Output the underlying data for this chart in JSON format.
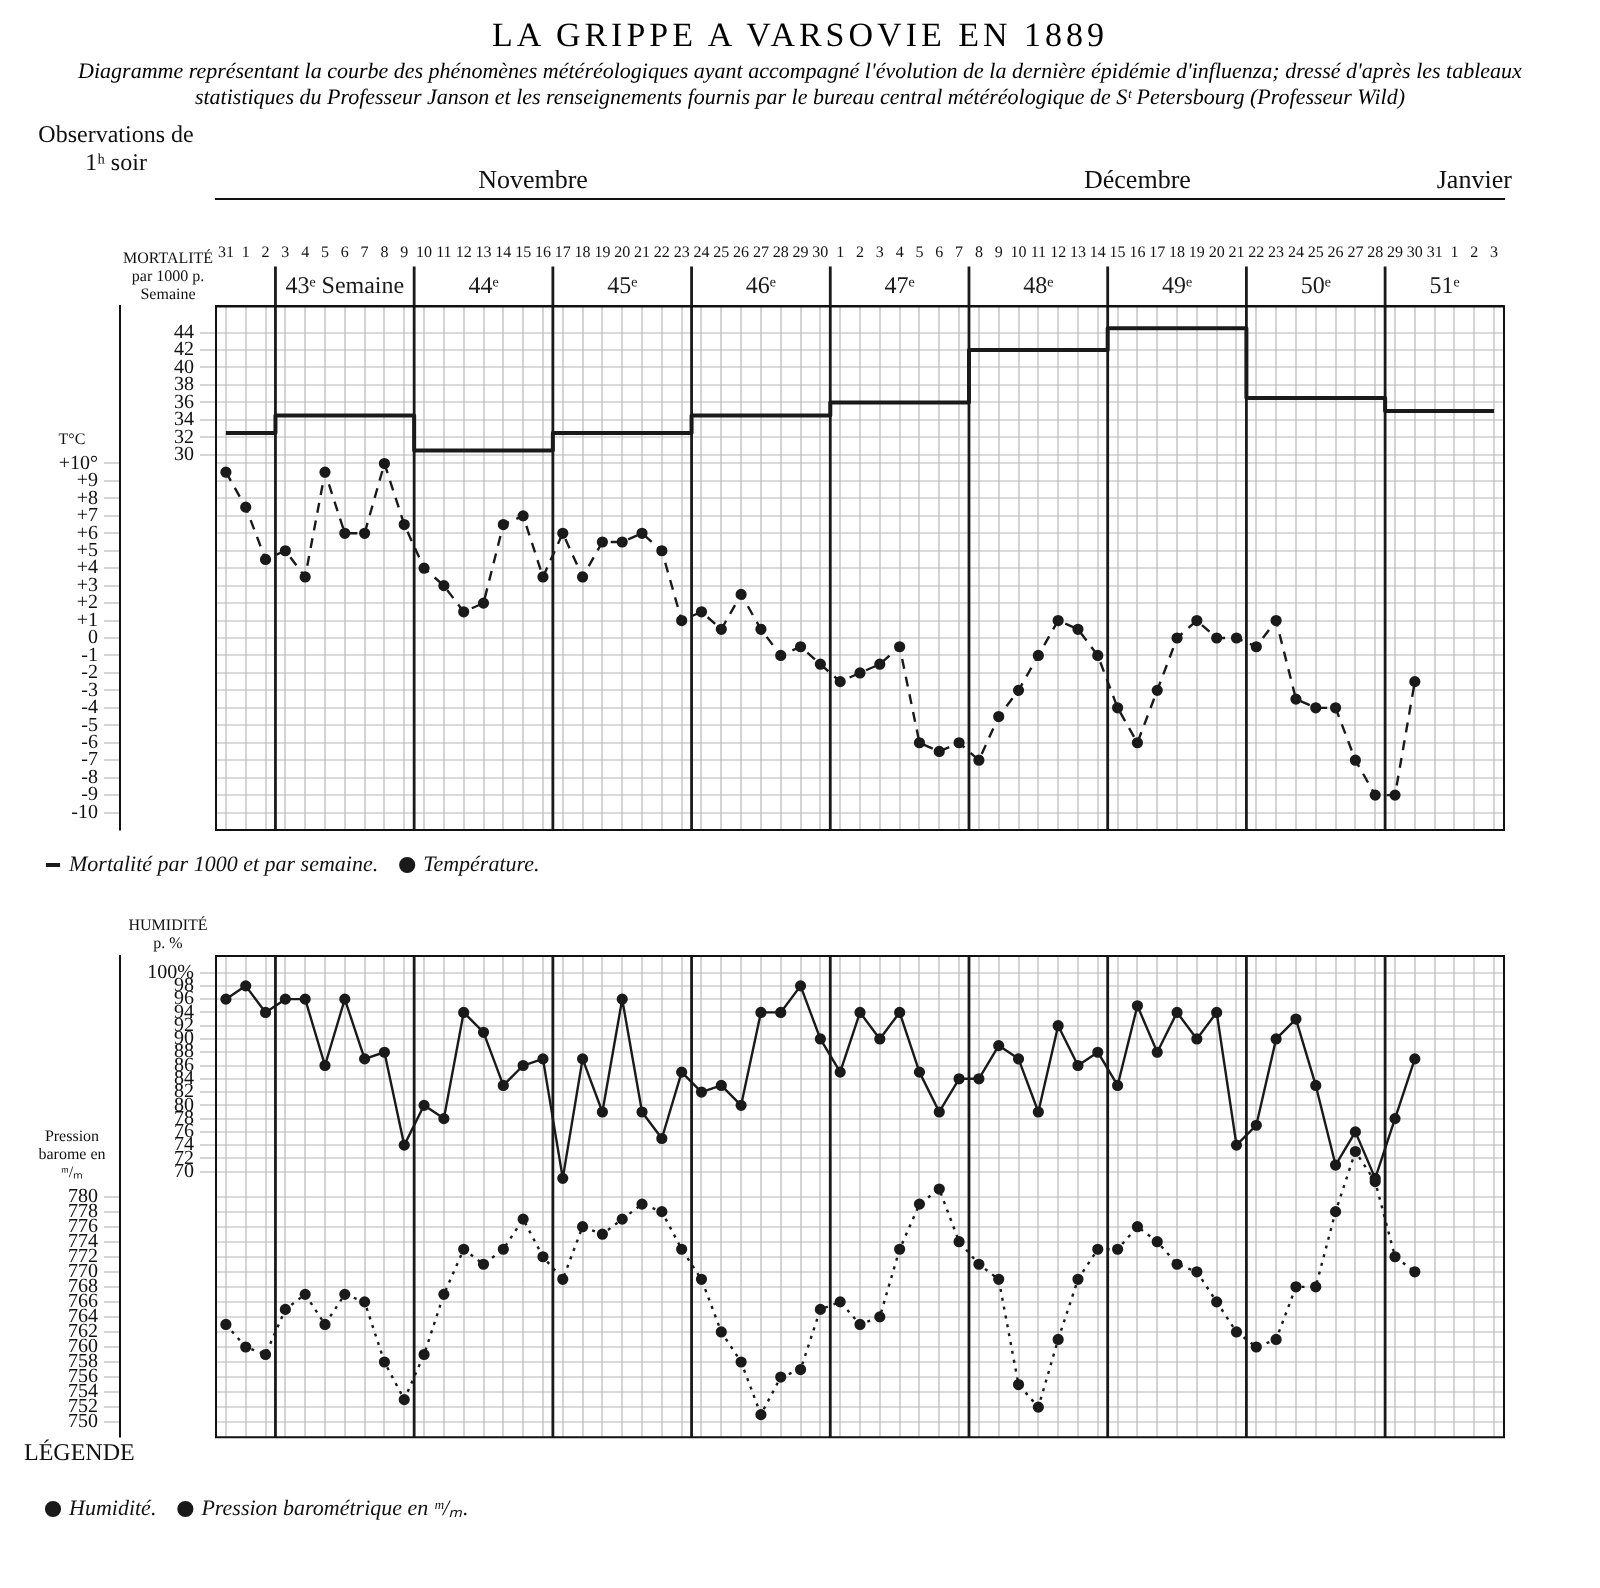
{
  "chart_data": [
    {
      "type": "line",
      "title": "LA GRIPPE A VARSOVIE EN 1889",
      "subtitle": "Diagramme représentant la courbe des phénomènes météréologiques ayant accompagné l'évolution de la dernière épidémie d'influenza; dressé d'après les tableaux statistiques du Professeur Janson et les renseignements fournis par le bureau central météréologique de Sᵗ Petersbourg (Professeur Wild)",
      "x": [
        "1889-10-31",
        "1889-11-01",
        "1889-11-02",
        "1889-11-03",
        "1889-11-04",
        "1889-11-05",
        "1889-11-06",
        "1889-11-07",
        "1889-11-08",
        "1889-11-09",
        "1889-11-10",
        "1889-11-11",
        "1889-11-12",
        "1889-11-13",
        "1889-11-14",
        "1889-11-15",
        "1889-11-16",
        "1889-11-17",
        "1889-11-18",
        "1889-11-19",
        "1889-11-20",
        "1889-11-21",
        "1889-11-22",
        "1889-11-23",
        "1889-11-24",
        "1889-11-25",
        "1889-11-26",
        "1889-11-27",
        "1889-11-28",
        "1889-11-29",
        "1889-11-30",
        "1889-12-01",
        "1889-12-02",
        "1889-12-03",
        "1889-12-04",
        "1889-12-05",
        "1889-12-06",
        "1889-12-07",
        "1889-12-08",
        "1889-12-09",
        "1889-12-10",
        "1889-12-11",
        "1889-12-12",
        "1889-12-13",
        "1889-12-14",
        "1889-12-15",
        "1889-12-16",
        "1889-12-17",
        "1889-12-18",
        "1889-12-19",
        "1889-12-20",
        "1889-12-21",
        "1889-12-22",
        "1889-12-23",
        "1889-12-24",
        "1889-12-25",
        "1889-12-26",
        "1889-12-27",
        "1889-12-28",
        "1889-12-29",
        "1889-12-30",
        "1889-12-31",
        "1890-01-01",
        "1890-01-02",
        "1890-01-03"
      ],
      "xlim": [
        "1889-10-30T12:00",
        "1890-01-03T12:00"
      ],
      "xticks": [
        {
          "value": "1889-10-31",
          "label": "31"
        },
        {
          "value": "1889-11-01",
          "label": "1"
        },
        {
          "value": "1889-11-02",
          "label": "2"
        },
        {
          "value": "1889-11-03",
          "label": "3"
        },
        {
          "value": "1889-11-04",
          "label": "4"
        },
        {
          "value": "1889-11-05",
          "label": "5"
        },
        {
          "value": "1889-11-06",
          "label": "6"
        },
        {
          "value": "1889-11-07",
          "label": "7"
        },
        {
          "value": "1889-11-08",
          "label": "8"
        },
        {
          "value": "1889-11-09",
          "label": "9"
        },
        {
          "value": "1889-11-10",
          "label": "10"
        },
        {
          "value": "1889-11-11",
          "label": "11"
        },
        {
          "value": "1889-11-12",
          "label": "12"
        },
        {
          "value": "1889-11-13",
          "label": "13"
        },
        {
          "value": "1889-11-14",
          "label": "14"
        },
        {
          "value": "1889-11-15",
          "label": "15"
        },
        {
          "value": "1889-11-16",
          "label": "16"
        },
        {
          "value": "1889-11-17",
          "label": "17"
        },
        {
          "value": "1889-11-18",
          "label": "18"
        },
        {
          "value": "1889-11-19",
          "label": "19"
        },
        {
          "value": "1889-11-20",
          "label": "20"
        },
        {
          "value": "1889-11-21",
          "label": "21"
        },
        {
          "value": "1889-11-22",
          "label": "22"
        },
        {
          "value": "1889-11-23",
          "label": "23"
        },
        {
          "value": "1889-11-24",
          "label": "24"
        },
        {
          "value": "1889-11-25",
          "label": "25"
        },
        {
          "value": "1889-11-26",
          "label": "26"
        },
        {
          "value": "1889-11-27",
          "label": "27"
        },
        {
          "value": "1889-11-28",
          "label": "28"
        },
        {
          "value": "1889-11-29",
          "label": "29"
        },
        {
          "value": "1889-11-30",
          "label": "30"
        },
        {
          "value": "1889-12-01",
          "label": "1"
        },
        {
          "value": "1889-12-02",
          "label": "2"
        },
        {
          "value": "1889-12-03",
          "label": "3"
        },
        {
          "value": "1889-12-04",
          "label": "4"
        },
        {
          "value": "1889-12-05",
          "label": "5"
        },
        {
          "value": "1889-12-06",
          "label": "6"
        },
        {
          "value": "1889-12-07",
          "label": "7"
        },
        {
          "value": "1889-12-08",
          "label": "8"
        },
        {
          "value": "1889-12-09",
          "label": "9"
        },
        {
          "value": "1889-12-10",
          "label": "10"
        },
        {
          "value": "1889-12-11",
          "label": "11"
        },
        {
          "value": "1889-12-12",
          "label": "12"
        },
        {
          "value": "1889-12-13",
          "label": "13"
        },
        {
          "value": "1889-12-14",
          "label": "14"
        },
        {
          "value": "1889-12-15",
          "label": "15"
        },
        {
          "value": "1889-12-16",
          "label": "16"
        },
        {
          "value": "1889-12-17",
          "label": "17"
        },
        {
          "value": "1889-12-18",
          "label": "18"
        },
        {
          "value": "1889-12-19",
          "label": "19"
        },
        {
          "value": "1889-12-20",
          "label": "20"
        },
        {
          "value": "1889-12-21",
          "label": "21"
        },
        {
          "value": "1889-12-22",
          "label": "22"
        },
        {
          "value": "1889-12-23",
          "label": "23"
        },
        {
          "value": "1889-12-24",
          "label": "24"
        },
        {
          "value": "1889-12-25",
          "label": "25"
        },
        {
          "value": "1889-12-26",
          "label": "26"
        },
        {
          "value": "1889-12-27",
          "label": "27"
        },
        {
          "value": "1889-12-28",
          "label": "28"
        },
        {
          "value": "1889-12-29",
          "label": "29"
        },
        {
          "value": "1889-12-30",
          "label": "30"
        },
        {
          "value": "1889-12-31",
          "label": "31"
        },
        {
          "value": "1890-01-01",
          "label": "1"
        },
        {
          "value": "1890-01-02",
          "label": "2"
        },
        {
          "value": "1890-01-03",
          "label": "3"
        }
      ],
      "x2lim": [
        "1889-10-30T12:00",
        "1890-01-03T12:00"
      ],
      "x2ticks": [
        {
          "value": "1889-11-15T12:00",
          "label": "Novembre"
        },
        {
          "value": "1889-12-16",
          "label": "Décembre"
        },
        {
          "value": "1890-01-02",
          "label": "Janvier"
        }
      ],
      "ylabel": "MORTALITÉ par 1000 p. Semaine",
      "ylim": [
        -13,
        47
      ],
      "yticks": [
        30,
        32,
        34,
        36,
        38,
        40,
        42,
        44
      ],
      "y2label": "T°C",
      "y2lim": [
        -11,
        19
      ],
      "y2ticks": [
        {
          "value": 10,
          "label": "+10°"
        },
        {
          "value": 9,
          "label": "+9"
        },
        {
          "value": 8,
          "label": "+8"
        },
        {
          "value": 7,
          "label": "+7"
        },
        {
          "value": 6,
          "label": "+6"
        },
        {
          "value": 5,
          "label": "+5"
        },
        {
          "value": 4,
          "label": "+4"
        },
        {
          "value": 3,
          "label": "+3"
        },
        {
          "value": 2,
          "label": "+2"
        },
        {
          "value": 1,
          "label": "+1"
        },
        0,
        -1,
        -2,
        -3,
        -4,
        -5,
        -6,
        -7,
        -8,
        -9,
        -10
      ],
      "series": [
        {
          "name": "Mortalité par 1000 et par semaine.",
          "type": "step",
          "color": "#1a1a1a",
          "marker": "none",
          "line_style": "solid",
          "values": [
            32.5,
            32.5,
            32.5,
            34.5,
            34.5,
            34.5,
            34.5,
            34.5,
            34.5,
            34.5,
            30.5,
            30.5,
            30.5,
            30.5,
            30.5,
            30.5,
            30.5,
            32.5,
            32.5,
            32.5,
            32.5,
            32.5,
            32.5,
            32.5,
            34.5,
            34.5,
            34.5,
            34.5,
            34.5,
            34.5,
            34.5,
            36,
            36,
            36,
            36,
            36,
            36,
            36,
            42,
            42,
            42,
            42,
            42,
            42,
            42,
            44.5,
            44.5,
            44.5,
            44.5,
            44.5,
            44.5,
            44.5,
            36.5,
            36.5,
            36.5,
            36.5,
            36.5,
            36.5,
            36.5,
            35,
            35,
            35,
            35,
            35,
            35
          ]
        },
        {
          "name": "Température.",
          "axis": "y2",
          "color": "#1a1a1a",
          "marker": "circle",
          "line_style": "dashed",
          "values": [
            9.5,
            7.5,
            4.5,
            5,
            3.5,
            9.5,
            6,
            6,
            10,
            6.5,
            4,
            3,
            1.5,
            2,
            6.5,
            7,
            3.5,
            6,
            3.5,
            5.5,
            5.5,
            6,
            5,
            1,
            1.5,
            0.5,
            2.5,
            0.5,
            -1,
            -0.5,
            -1.5,
            -2.5,
            -2,
            -1.5,
            -0.5,
            -6,
            -6.5,
            -6,
            -7,
            -4.5,
            -3,
            -1,
            1,
            0.5,
            -1,
            -4,
            -6,
            -3,
            0,
            1,
            0,
            0,
            -0.5,
            1,
            -3.5,
            -4,
            -4,
            -7,
            -9,
            -9,
            -2.5,
            null,
            null,
            null,
            null
          ]
        }
      ],
      "ref_lines": [
        {
          "axis": "x",
          "value": "1889-11-02T12:00",
          "color": "#1a1a1a",
          "label": "43ᵉ Semaine"
        },
        {
          "axis": "x",
          "value": "1889-11-09T12:00",
          "color": "#1a1a1a",
          "label": "44ᵉ"
        },
        {
          "axis": "x",
          "value": "1889-11-16T12:00",
          "color": "#1a1a1a",
          "label": "45ᵉ"
        },
        {
          "axis": "x",
          "value": "1889-11-23T12:00",
          "color": "#1a1a1a",
          "label": "46ᵉ"
        },
        {
          "axis": "x",
          "value": "1889-11-30T12:00",
          "color": "#1a1a1a",
          "label": "47ᵉ"
        },
        {
          "axis": "x",
          "value": "1889-12-07T12:00",
          "color": "#1a1a1a",
          "label": "48ᵉ"
        },
        {
          "axis": "x",
          "value": "1889-12-14T12:00",
          "color": "#1a1a1a",
          "label": "49ᵉ"
        },
        {
          "axis": "x",
          "value": "1889-12-21T12:00",
          "color": "#1a1a1a",
          "label": "50ᵉ"
        },
        {
          "axis": "x",
          "value": "1889-12-28T12:00",
          "color": "#1a1a1a",
          "label": "51ᵉ"
        }
      ],
      "annotations": [
        "Observations de 1ʰ soir"
      ],
      "grid": true,
      "legend": "bottom"
    },
    {
      "type": "line",
      "tick_labels": "y",
      "x": [
        "1889-10-31",
        "1889-11-01",
        "1889-11-02",
        "1889-11-03",
        "1889-11-04",
        "1889-11-05",
        "1889-11-06",
        "1889-11-07",
        "1889-11-08",
        "1889-11-09",
        "1889-11-10",
        "1889-11-11",
        "1889-11-12",
        "1889-11-13",
        "1889-11-14",
        "1889-11-15",
        "1889-11-16",
        "1889-11-17",
        "1889-11-18",
        "1889-11-19",
        "1889-11-20",
        "1889-11-21",
        "1889-11-22",
        "1889-11-23",
        "1889-11-24",
        "1889-11-25",
        "1889-11-26",
        "1889-11-27",
        "1889-11-28",
        "1889-11-29",
        "1889-11-30",
        "1889-12-01",
        "1889-12-02",
        "1889-12-03",
        "1889-12-04",
        "1889-12-05",
        "1889-12-06",
        "1889-12-07",
        "1889-12-08",
        "1889-12-09",
        "1889-12-10",
        "1889-12-11",
        "1889-12-12",
        "1889-12-13",
        "1889-12-14",
        "1889-12-15",
        "1889-12-16",
        "1889-12-17",
        "1889-12-18",
        "1889-12-19",
        "1889-12-20",
        "1889-12-21",
        "1889-12-22",
        "1889-12-23",
        "1889-12-24",
        "1889-12-25",
        "1889-12-26",
        "1889-12-27",
        "1889-12-28",
        "1889-12-29",
        "1889-12-30"
      ],
      "xlim": [
        "1889-10-30T12:00",
        "1890-01-03T12:00"
      ],
      "xticks": [
        {
          "value": "1889-10-31",
          "label": null
        },
        {
          "value": "1889-11-01",
          "label": null
        },
        {
          "value": "1889-11-02",
          "label": null
        },
        {
          "value": "1889-11-03",
          "label": null
        },
        {
          "value": "1889-11-04",
          "label": null
        },
        {
          "value": "1889-11-05",
          "label": null
        },
        {
          "value": "1889-11-06",
          "label": null
        },
        {
          "value": "1889-11-07",
          "label": null
        },
        {
          "value": "1889-11-08",
          "label": null
        },
        {
          "value": "1889-11-09",
          "label": null
        },
        {
          "value": "1889-11-10",
          "label": null
        },
        {
          "value": "1889-11-11",
          "label": null
        },
        {
          "value": "1889-11-12",
          "label": null
        },
        {
          "value": "1889-11-13",
          "label": null
        },
        {
          "value": "1889-11-14",
          "label": null
        },
        {
          "value": "1889-11-15",
          "label": null
        },
        {
          "value": "1889-11-16",
          "label": null
        },
        {
          "value": "1889-11-17",
          "label": null
        },
        {
          "value": "1889-11-18",
          "label": null
        },
        {
          "value": "1889-11-19",
          "label": null
        },
        {
          "value": "1889-11-20",
          "label": null
        },
        {
          "value": "1889-11-21",
          "label": null
        },
        {
          "value": "1889-11-22",
          "label": null
        },
        {
          "value": "1889-11-23",
          "label": null
        },
        {
          "value": "1889-11-24",
          "label": null
        },
        {
          "value": "1889-11-25",
          "label": null
        },
        {
          "value": "1889-11-26",
          "label": null
        },
        {
          "value": "1889-11-27",
          "label": null
        },
        {
          "value": "1889-11-28",
          "label": null
        },
        {
          "value": "1889-11-29",
          "label": null
        },
        {
          "value": "1889-11-30",
          "label": null
        },
        {
          "value": "1889-12-01",
          "label": null
        },
        {
          "value": "1889-12-02",
          "label": null
        },
        {
          "value": "1889-12-03",
          "label": null
        },
        {
          "value": "1889-12-04",
          "label": null
        },
        {
          "value": "1889-12-05",
          "label": null
        },
        {
          "value": "1889-12-06",
          "label": null
        },
        {
          "value": "1889-12-07",
          "label": null
        },
        {
          "value": "1889-12-08",
          "label": null
        },
        {
          "value": "1889-12-09",
          "label": null
        },
        {
          "value": "1889-12-10",
          "label": null
        },
        {
          "value": "1889-12-11",
          "label": null
        },
        {
          "value": "1889-12-12",
          "label": null
        },
        {
          "value": "1889-12-13",
          "label": null
        },
        {
          "value": "1889-12-14",
          "label": null
        },
        {
          "value": "1889-12-15",
          "label": null
        },
        {
          "value": "1889-12-16",
          "label": null
        },
        {
          "value": "1889-12-17",
          "label": null
        },
        {
          "value": "1889-12-18",
          "label": null
        },
        {
          "value": "1889-12-19",
          "label": null
        },
        {
          "value": "1889-12-20",
          "label": null
        },
        {
          "value": "1889-12-21",
          "label": null
        },
        {
          "value": "1889-12-22",
          "label": null
        },
        {
          "value": "1889-12-23",
          "label": null
        },
        {
          "value": "1889-12-24",
          "label": null
        },
        {
          "value": "1889-12-25",
          "label": null
        },
        {
          "value": "1889-12-26",
          "label": null
        },
        {
          "value": "1889-12-27",
          "label": null
        },
        {
          "value": "1889-12-28",
          "label": null
        },
        {
          "value": "1889-12-29",
          "label": null
        },
        {
          "value": "1889-12-30",
          "label": null
        },
        {
          "value": "1889-12-31",
          "label": null
        },
        {
          "value": "1890-01-01",
          "label": null
        },
        {
          "value": "1890-01-02",
          "label": null
        },
        {
          "value": "1890-01-03",
          "label": null
        }
      ],
      "ylabel": "HUMIDITÉ p. %",
      "ylim": [
        30,
        102.5
      ],
      "yticks": [
        70,
        72,
        74,
        76,
        78,
        80,
        82,
        84,
        86,
        88,
        90,
        92,
        94,
        96,
        98,
        {
          "value": 100,
          "label": "100%"
        }
      ],
      "y2label": "Pression barome en ᵐ/ₘ",
      "y2lim": [
        748,
        812
      ],
      "y2ticks": [
        750,
        752,
        754,
        756,
        758,
        760,
        762,
        764,
        766,
        768,
        770,
        772,
        774,
        776,
        778,
        780
      ],
      "series": [
        {
          "name": "Humidité.",
          "color": "#1a1a1a",
          "marker": "circle",
          "line_style": "solid",
          "values": [
            96,
            98,
            94,
            96,
            96,
            86,
            96,
            87,
            88,
            74,
            80,
            78,
            94,
            91,
            83,
            86,
            87,
            69,
            87,
            79,
            96,
            79,
            75,
            85,
            82,
            83,
            80,
            94,
            94,
            98,
            90,
            85,
            94,
            90,
            94,
            85,
            79,
            84,
            84,
            89,
            87,
            79,
            92,
            86,
            88,
            83,
            95,
            88,
            94,
            90,
            94,
            74,
            77,
            90,
            93,
            83,
            71,
            76,
            69,
            78,
            87
          ]
        },
        {
          "name": "Pression barométrique en ᵐ/ₘ.",
          "axis": "y2",
          "color": "#1a1a1a",
          "marker": "circle",
          "line_style": "dotted",
          "values": [
            763,
            760,
            759,
            765,
            767,
            763,
            767,
            766,
            758,
            753,
            759,
            767,
            773,
            771,
            773,
            777,
            772,
            769,
            776,
            775,
            777,
            779,
            778,
            773,
            769,
            762,
            758,
            751,
            756,
            757,
            765,
            766,
            763,
            764,
            773,
            779,
            781,
            774,
            771,
            769,
            755,
            752,
            761,
            769,
            773,
            773,
            776,
            774,
            771,
            770,
            766,
            762,
            760,
            761,
            768,
            768,
            778,
            786,
            782,
            772,
            770
          ]
        }
      ],
      "ref_lines": [
        {
          "axis": "x",
          "value": "1889-11-02T12:00",
          "color": "#1a1a1a"
        },
        {
          "axis": "x",
          "value": "1889-11-09T12:00",
          "color": "#1a1a1a"
        },
        {
          "axis": "x",
          "value": "1889-11-16T12:00",
          "color": "#1a1a1a"
        },
        {
          "axis": "x",
          "value": "1889-11-23T12:00",
          "color": "#1a1a1a"
        },
        {
          "axis": "x",
          "value": "1889-11-30T12:00",
          "color": "#1a1a1a"
        },
        {
          "axis": "x",
          "value": "1889-12-07T12:00",
          "color": "#1a1a1a"
        },
        {
          "axis": "x",
          "value": "1889-12-14T12:00",
          "color": "#1a1a1a"
        },
        {
          "axis": "x",
          "value": "1889-12-21T12:00",
          "color": "#1a1a1a"
        },
        {
          "axis": "x",
          "value": "1889-12-28T12:00",
          "color": "#1a1a1a"
        }
      ],
      "grid": true,
      "legend": "bottom",
      "legend_title": "LÉGENDE"
    }
  ]
}
